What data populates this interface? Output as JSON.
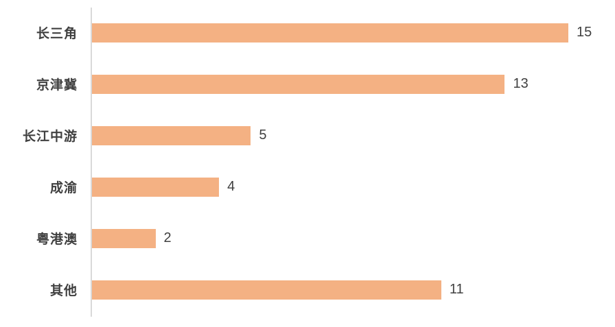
{
  "chart_data": {
    "type": "bar",
    "orientation": "horizontal",
    "categories": [
      "长三角",
      "京津冀",
      "长江中游",
      "成渝",
      "粤港澳",
      "其他"
    ],
    "values": [
      15,
      13,
      5,
      4,
      2,
      11
    ],
    "title": "",
    "xlabel": "",
    "ylabel": "",
    "xlim": [
      0,
      15
    ],
    "grid": false,
    "legend": false,
    "data_labels_shown": true,
    "bar_color": "#F4B183",
    "axis_line_color": "#D9D9D9",
    "label_color": "#404040"
  }
}
